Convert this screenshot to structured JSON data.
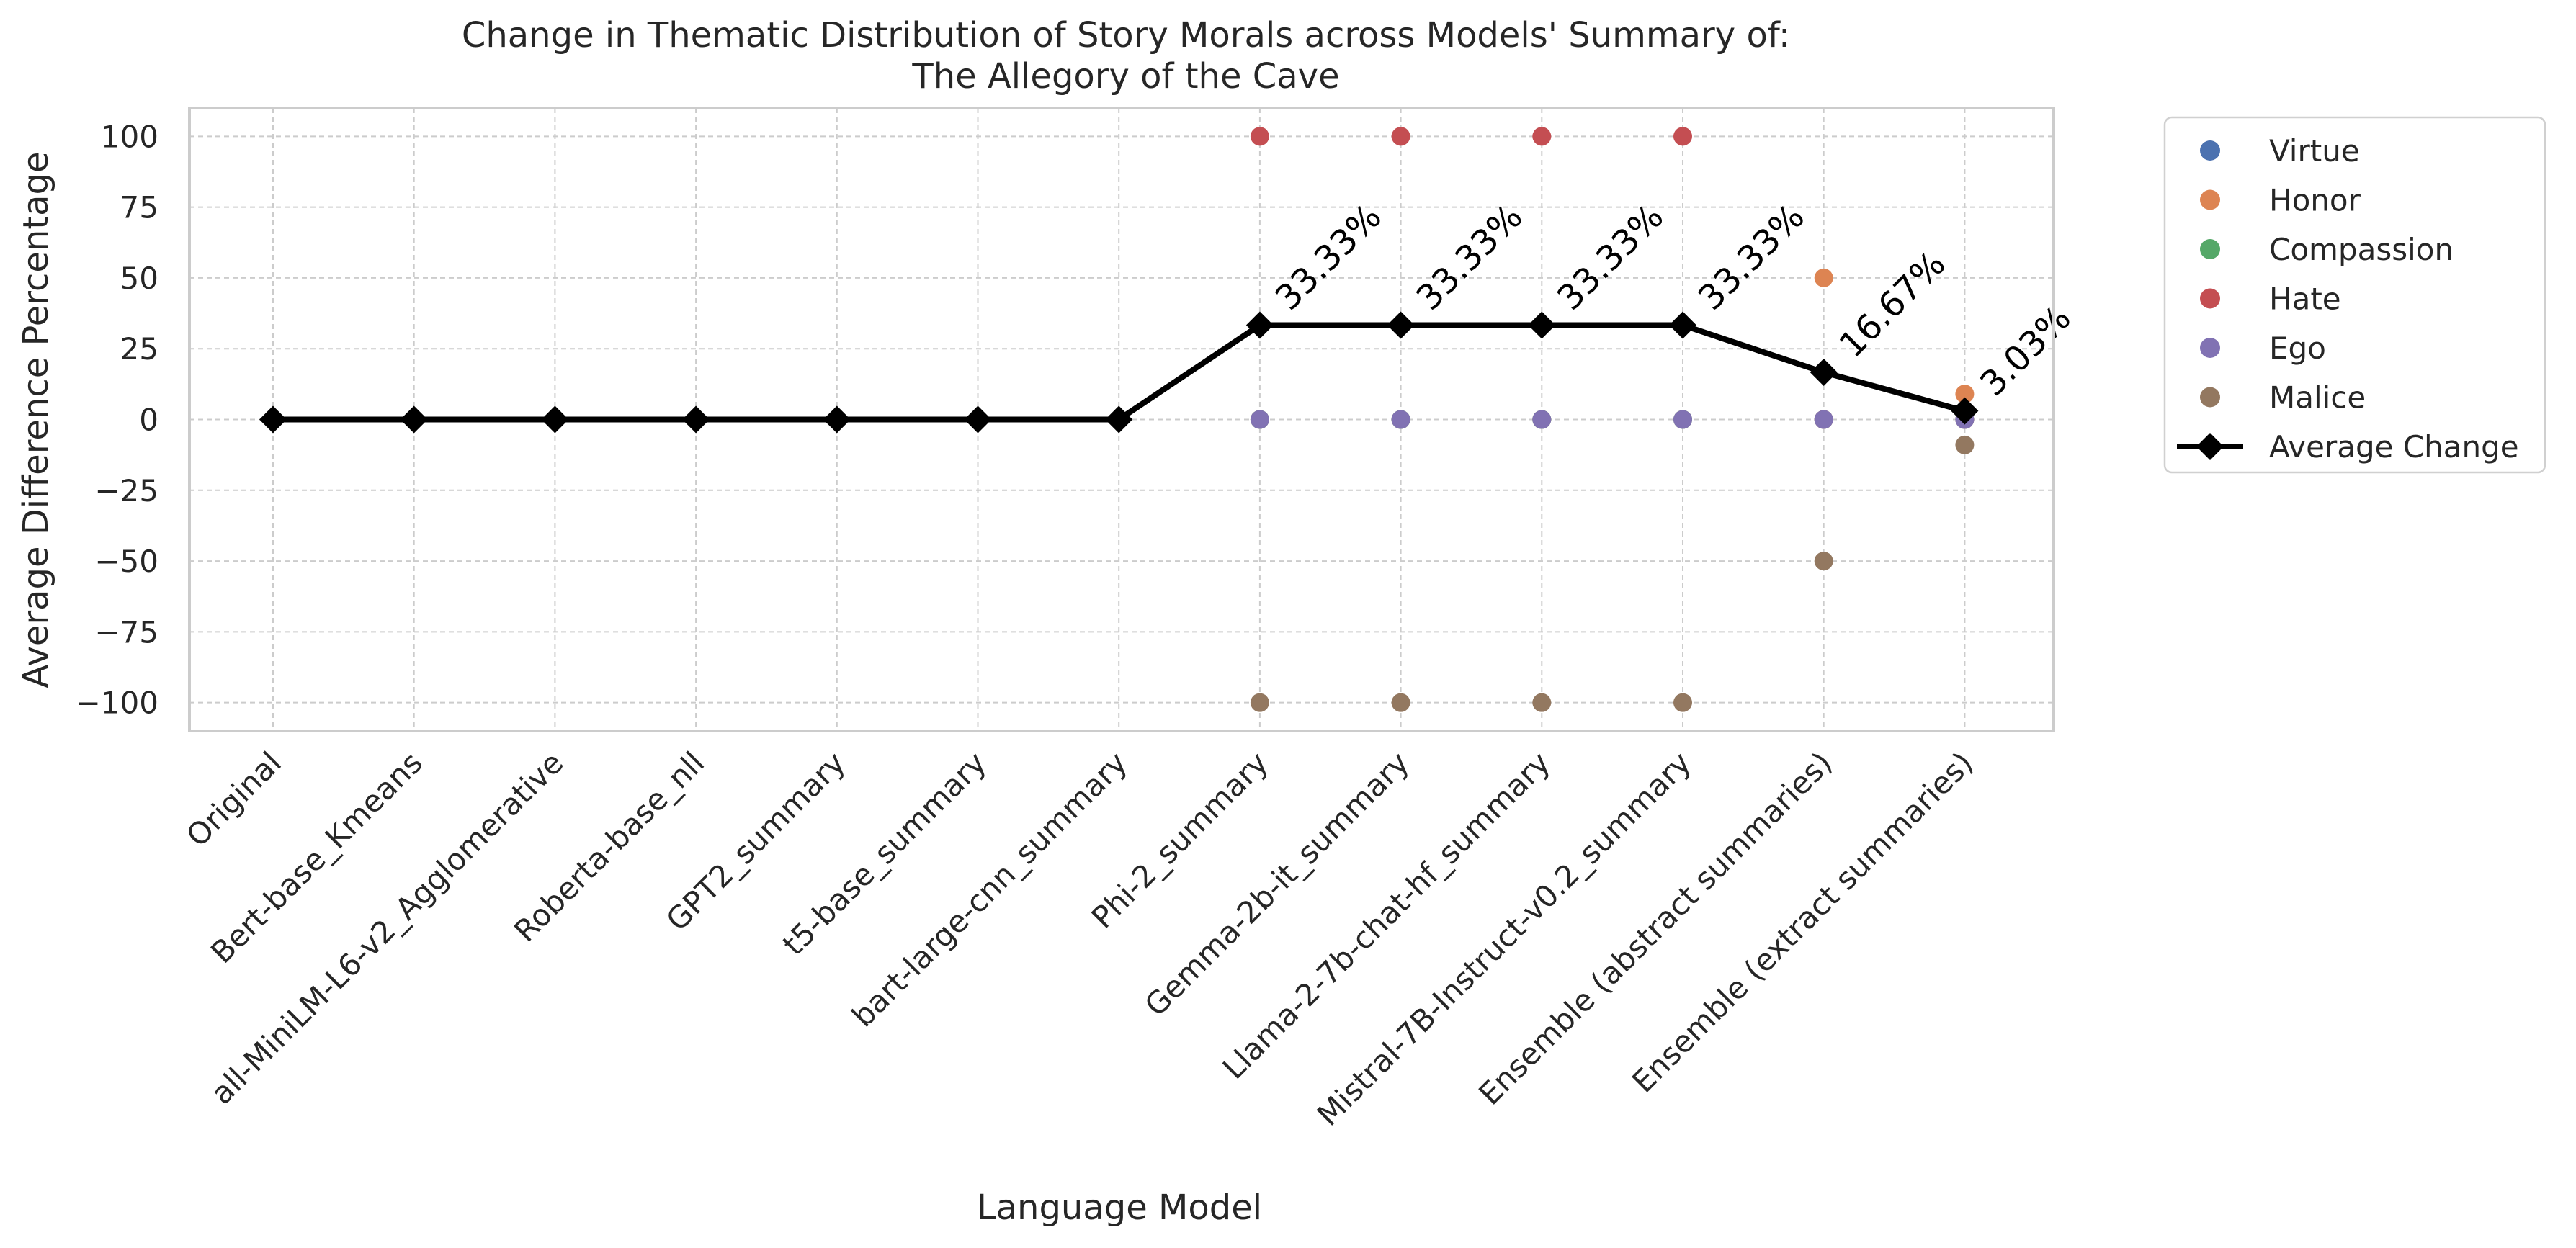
{
  "chart_data": {
    "type": "scatter",
    "title": "Change in Thematic Distribution of Story Morals across Models' Summary of:",
    "subtitle": "The Allegory of the Cave",
    "xlabel": "Language Model",
    "ylabel": "Average Difference Percentage",
    "ylim": [
      -110,
      110
    ],
    "y_ticks": [
      100,
      75,
      50,
      25,
      0,
      -25,
      -50,
      -75,
      -100
    ],
    "categories": [
      "Original",
      "Bert-base_Kmeans",
      "all-MiniLM-L6-v2_Agglomerative",
      "Roberta-base_nll",
      "GPT2_summary",
      "t5-base_summary",
      "bart-large-cnn_summary",
      "Phi-2_summary",
      "Gemma-2b-it_summary",
      "Llama-2-7b-chat-hf_summary",
      "Mistral-7B-Instruct-v0.2_summary",
      "Ensemble (abstract summaries)",
      "Ensemble (extract summaries)"
    ],
    "grid": true,
    "legend_position": "outside right, top",
    "series": [
      {
        "name": "Virtue",
        "color": "#4c72b0",
        "values": [
          0,
          0,
          0,
          0,
          0,
          0,
          0,
          0,
          0,
          0,
          0,
          0,
          0
        ]
      },
      {
        "name": "Honor",
        "color": "#dd8452",
        "values": [
          0,
          0,
          0,
          0,
          0,
          0,
          0,
          0,
          0,
          0,
          0,
          50,
          9
        ]
      },
      {
        "name": "Compassion",
        "color": "#55a868",
        "values": [
          0,
          0,
          0,
          0,
          0,
          0,
          0,
          0,
          0,
          0,
          0,
          0,
          0
        ]
      },
      {
        "name": "Hate",
        "color": "#c44e52",
        "values": [
          0,
          0,
          0,
          0,
          0,
          0,
          0,
          100,
          100,
          100,
          100,
          0,
          0
        ]
      },
      {
        "name": "Ego",
        "color": "#8172b3",
        "values": [
          0,
          0,
          0,
          0,
          0,
          0,
          0,
          0,
          0,
          0,
          0,
          0,
          0
        ]
      },
      {
        "name": "Malice",
        "color": "#937860",
        "values": [
          0,
          0,
          0,
          0,
          0,
          0,
          0,
          -100,
          -100,
          -100,
          -100,
          -50,
          -9
        ]
      }
    ],
    "average_line": {
      "name": "Average Change",
      "color": "#000000",
      "values": [
        0,
        0,
        0,
        0,
        0,
        0,
        0,
        33.33,
        33.33,
        33.33,
        33.33,
        16.67,
        3.03
      ],
      "labels": [
        "33.33%",
        "33.33%",
        "33.33%",
        "33.33%",
        "16.67%",
        "3.03%"
      ],
      "labeled_from_index": 7
    }
  }
}
